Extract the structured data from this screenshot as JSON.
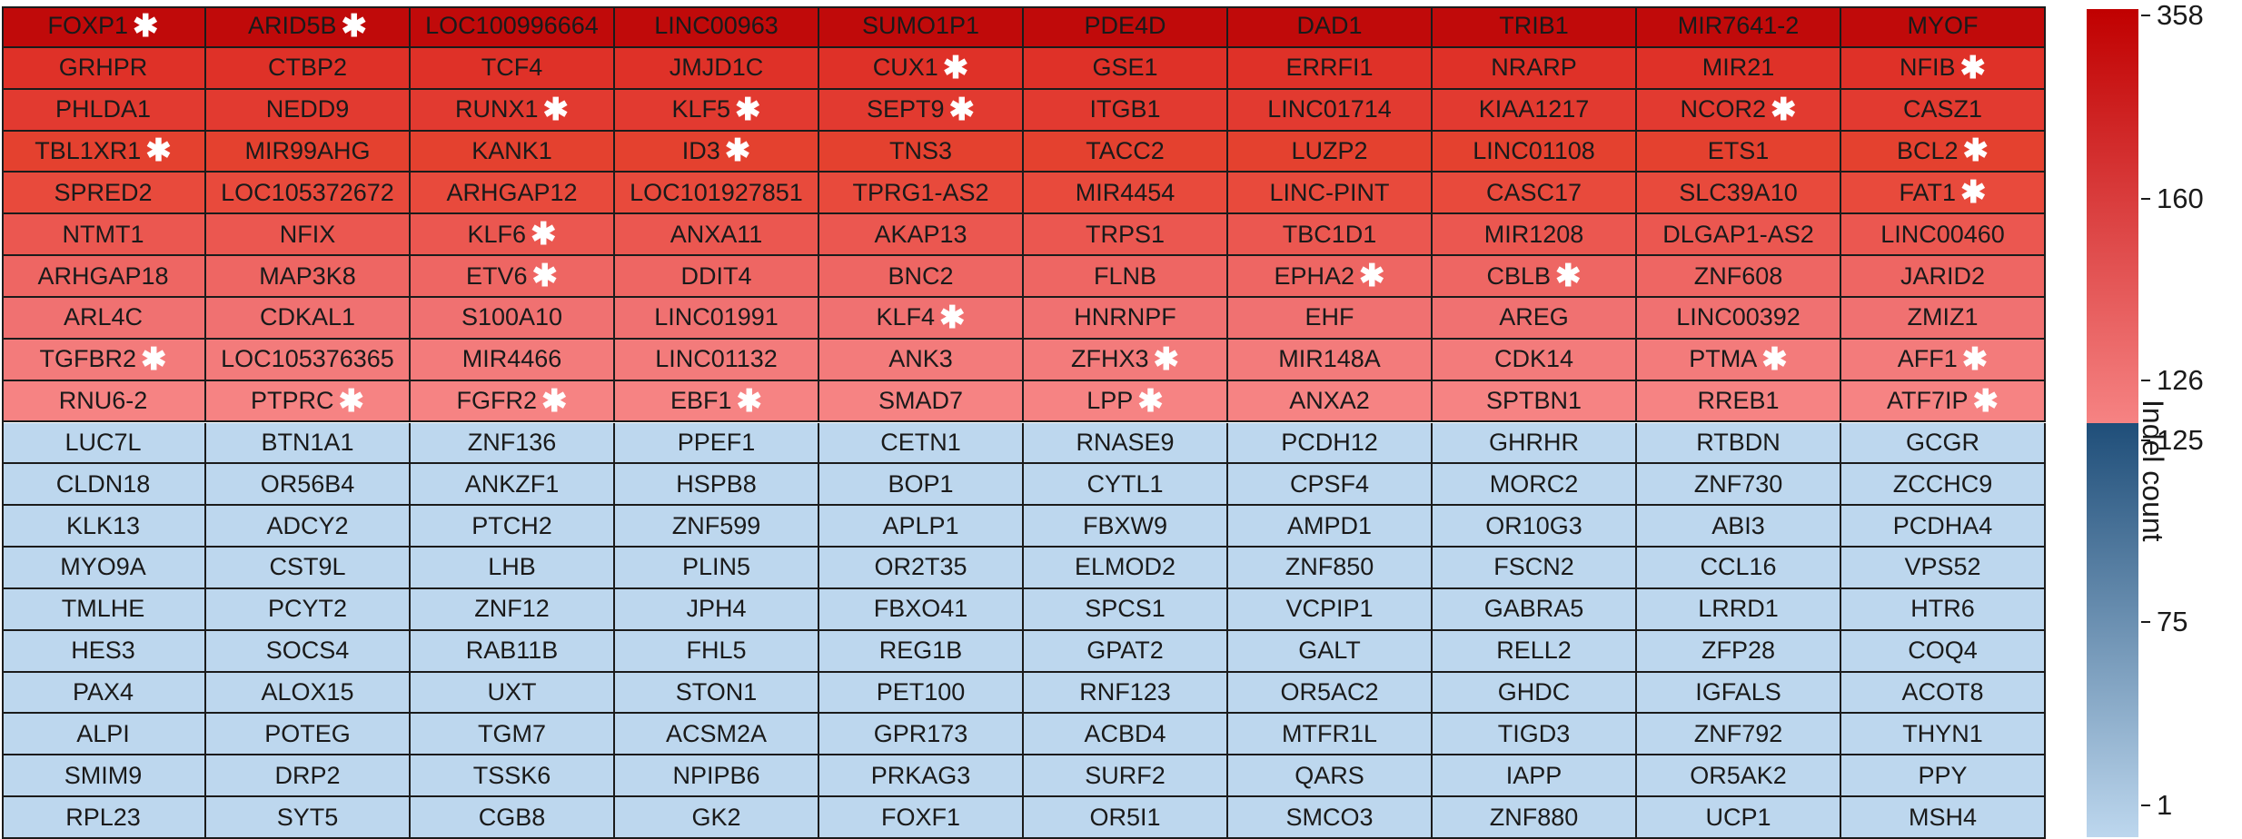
{
  "chart_data": {
    "type": "heatmap",
    "title": "",
    "colorbar_label": "Indel count",
    "top_group_color_range": [
      "#f68383",
      "#c00000"
    ],
    "bottom_group_color_range": [
      "#bdd7ee",
      "#1f4e79"
    ],
    "colorbar_ticks": [
      {
        "label": "358",
        "value": 358
      },
      {
        "label": "160",
        "value": 160
      },
      {
        "label": "126",
        "value": 126
      },
      {
        "label": "125",
        "value": 125
      },
      {
        "label": "75",
        "value": 75
      },
      {
        "label": "1",
        "value": 1
      }
    ],
    "asterisk_marker": "*",
    "rows": [
      [
        "FOXP1*",
        "ARID5B*",
        "LOC100996664",
        "LINC00963",
        "SUMO1P1",
        "PDE4D",
        "DAD1",
        "TRIB1",
        "MIR7641-2",
        "MYOF"
      ],
      [
        "GRHPR",
        "CTBP2",
        "TCF4",
        "JMJD1C",
        "CUX1*",
        "GSE1",
        "ERRFI1",
        "NRARP",
        "MIR21",
        "NFIB*"
      ],
      [
        "PHLDA1",
        "NEDD9",
        "RUNX1*",
        "KLF5*",
        "SEPT9*",
        "ITGB1",
        "LINC01714",
        "KIAA1217",
        "NCOR2*",
        "CASZ1"
      ],
      [
        "TBL1XR1*",
        "MIR99AHG",
        "KANK1",
        "ID3*",
        "TNS3",
        "TACC2",
        "LUZP2",
        "LINC01108",
        "ETS1",
        "BCL2*"
      ],
      [
        "SPRED2",
        "LOC105372672",
        "ARHGAP12",
        "LOC101927851",
        "TPRG1-AS2",
        "MIR4454",
        "LINC-PINT",
        "CASC17",
        "SLC39A10",
        "FAT1*"
      ],
      [
        "NTMT1",
        "NFIX",
        "KLF6*",
        "ANXA11",
        "AKAP13",
        "TRPS1",
        "TBC1D1",
        "MIR1208",
        "DLGAP1-AS2",
        "LINC00460"
      ],
      [
        "ARHGAP18",
        "MAP3K8",
        "ETV6*",
        "DDIT4",
        "BNC2",
        "FLNB",
        "EPHA2*",
        "CBLB*",
        "ZNF608",
        "JARID2"
      ],
      [
        "ARL4C",
        "CDKAL1",
        "S100A10",
        "LINC01991",
        "KLF4*",
        "HNRNPF",
        "EHF",
        "AREG",
        "LINC00392",
        "ZMIZ1"
      ],
      [
        "TGFBR2*",
        "LOC105376365",
        "MIR4466",
        "LINC01132",
        "ANK3",
        "ZFHX3*",
        "MIR148A",
        "CDK14",
        "PTMA*",
        "AFF1*"
      ],
      [
        "RNU6-2",
        "PTPRC*",
        "FGFR2*",
        "EBF1*",
        "SMAD7",
        "LPP*",
        "ANXA2",
        "SPTBN1",
        "RREB1",
        "ATF7IP*"
      ],
      [
        "LUC7L",
        "BTN1A1",
        "ZNF136",
        "PPEF1",
        "CETN1",
        "RNASE9",
        "PCDH12",
        "GHRHR",
        "RTBDN",
        "GCGR"
      ],
      [
        "CLDN18",
        "OR56B4",
        "ANKZF1",
        "HSPB8",
        "BOP1",
        "CYTL1",
        "CPSF4",
        "MORC2",
        "ZNF730",
        "ZCCHC9"
      ],
      [
        "KLK13",
        "ADCY2",
        "PTCH2",
        "ZNF599",
        "APLP1",
        "FBXW9",
        "AMPD1",
        "OR10G3",
        "ABI3",
        "PCDHA4"
      ],
      [
        "MYO9A",
        "CST9L",
        "LHB",
        "PLIN5",
        "OR2T35",
        "ELMOD2",
        "ZNF850",
        "FSCN2",
        "CCL16",
        "VPS52"
      ],
      [
        "TMLHE",
        "PCYT2",
        "ZNF12",
        "JPH4",
        "FBXO41",
        "SPCS1",
        "VCPIP1",
        "GABRA5",
        "LRRD1",
        "HTR6"
      ],
      [
        "HES3",
        "SOCS4",
        "RAB11B",
        "FHL5",
        "REG1B",
        "GPAT2",
        "GALT",
        "RELL2",
        "ZFP28",
        "COQ4"
      ],
      [
        "PAX4",
        "ALOX15",
        "UXT",
        "STON1",
        "PET100",
        "RNF123",
        "OR5AC2",
        "GHDC",
        "IGFALS",
        "ACOT8"
      ],
      [
        "ALPI",
        "POTEG",
        "TGM7",
        "ACSM2A",
        "GPR173",
        "ACBD4",
        "MTFR1L",
        "TIGD3",
        "ZNF792",
        "THYN1"
      ],
      [
        "SMIM9",
        "DRP2",
        "TSSK6",
        "NPIPB6",
        "PRKAG3",
        "SURF2",
        "QARS",
        "IAPP",
        "OR5AK2",
        "PPY"
      ],
      [
        "RPL23",
        "SYT5",
        "CGB8",
        "GK2",
        "FOXF1",
        "OR5I1",
        "SMCO3",
        "ZNF880",
        "UCP1",
        "MSH4"
      ]
    ],
    "row_colors": [
      "#c00a0a",
      "#df3128",
      "#e23a30",
      "#e4412f",
      "#e84a3c",
      "#eb5750",
      "#ee6663",
      "#f07171",
      "#f37b7b",
      "#f68383",
      "#bdd7ee",
      "#bdd7ee",
      "#bdd7ee",
      "#bdd7ee",
      "#bdd7ee",
      "#bdd7ee",
      "#bdd7ee",
      "#bdd7ee",
      "#bdd7ee",
      "#bdd7ee"
    ]
  }
}
